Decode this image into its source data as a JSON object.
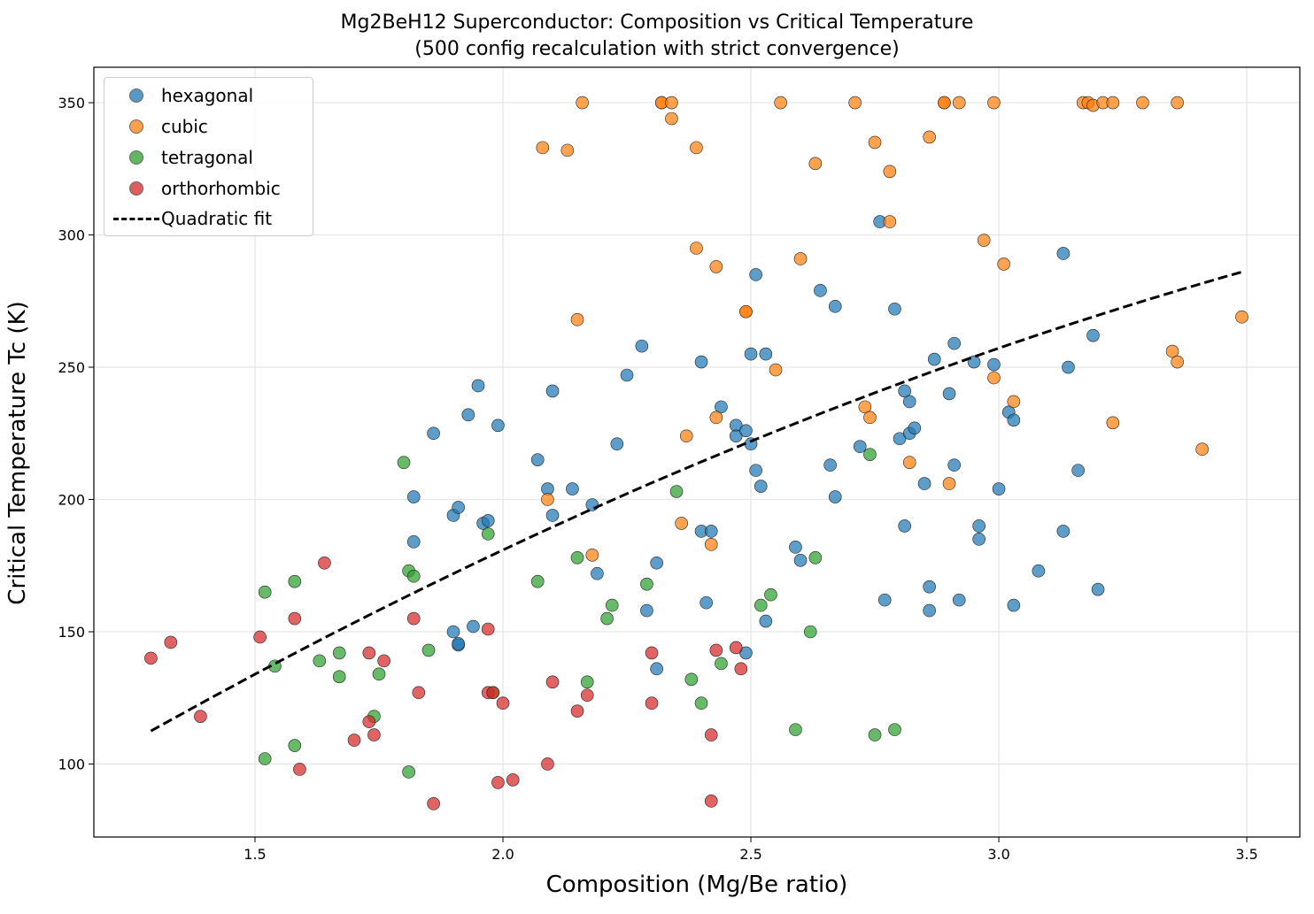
{
  "chart_data": {
    "type": "scatter",
    "title": "Mg2BeH12 Superconductor: Composition vs Critical Temperature",
    "subtitle": "(500 config recalculation with strict convergence)",
    "xlabel": "Composition (Mg/Be ratio)",
    "ylabel": "Critical Temperature Tc (K)",
    "xlim": [
      1.175,
      3.607
    ],
    "ylim": [
      72.4,
      363.4
    ],
    "xticks": [
      1.5,
      2.0,
      2.5,
      3.0,
      3.5
    ],
    "xtick_labels": [
      "1.5",
      "2.0",
      "2.5",
      "3.0",
      "3.5"
    ],
    "yticks": [
      100,
      150,
      200,
      250,
      300,
      350
    ],
    "ytick_labels": [
      "100",
      "150",
      "200",
      "250",
      "300",
      "350"
    ],
    "grid": true,
    "legend_position": "top-left",
    "series": [
      {
        "name": "hexagonal",
        "color": "#1f77b4",
        "points": [
          [
            1.86,
            225
          ],
          [
            1.95,
            243
          ],
          [
            1.93,
            232
          ],
          [
            1.99,
            228
          ],
          [
            1.82,
            201
          ],
          [
            1.82,
            184
          ],
          [
            1.9,
            194
          ],
          [
            1.91,
            197
          ],
          [
            1.96,
            191
          ],
          [
            1.97,
            192
          ],
          [
            1.9,
            150
          ],
          [
            1.91,
            145
          ],
          [
            1.91,
            145.5
          ],
          [
            1.94,
            152
          ],
          [
            2.07,
            215
          ],
          [
            2.09,
            204
          ],
          [
            2.1,
            194
          ],
          [
            2.1,
            241
          ],
          [
            2.14,
            204
          ],
          [
            2.18,
            198
          ],
          [
            2.19,
            172
          ],
          [
            2.23,
            221
          ],
          [
            2.25,
            247
          ],
          [
            2.28,
            258
          ],
          [
            2.29,
            158
          ],
          [
            2.31,
            176
          ],
          [
            2.31,
            136
          ],
          [
            2.4,
            252
          ],
          [
            2.4,
            188
          ],
          [
            2.41,
            161
          ],
          [
            2.42,
            188
          ],
          [
            2.44,
            235
          ],
          [
            2.47,
            228
          ],
          [
            2.47,
            224
          ],
          [
            2.49,
            142
          ],
          [
            2.49,
            226
          ],
          [
            2.5,
            255
          ],
          [
            2.5,
            221
          ],
          [
            2.51,
            285
          ],
          [
            2.51,
            211
          ],
          [
            2.52,
            205
          ],
          [
            2.53,
            154
          ],
          [
            2.53,
            255
          ],
          [
            2.59,
            182
          ],
          [
            2.6,
            177
          ],
          [
            2.64,
            279
          ],
          [
            2.66,
            213
          ],
          [
            2.67,
            201
          ],
          [
            2.67,
            273
          ],
          [
            2.72,
            220
          ],
          [
            2.76,
            305
          ],
          [
            2.77,
            162
          ],
          [
            2.79,
            272
          ],
          [
            2.8,
            223
          ],
          [
            2.81,
            241
          ],
          [
            2.81,
            190
          ],
          [
            2.82,
            237
          ],
          [
            2.82,
            225
          ],
          [
            2.83,
            227
          ],
          [
            2.85,
            206
          ],
          [
            2.86,
            158
          ],
          [
            2.86,
            167
          ],
          [
            2.87,
            253
          ],
          [
            2.9,
            240
          ],
          [
            2.91,
            213
          ],
          [
            2.91,
            259
          ],
          [
            2.92,
            162
          ],
          [
            2.95,
            252
          ],
          [
            2.96,
            190
          ],
          [
            2.96,
            185
          ],
          [
            2.99,
            251
          ],
          [
            3.0,
            204
          ],
          [
            3.02,
            233
          ],
          [
            3.03,
            230
          ],
          [
            3.03,
            160
          ],
          [
            3.08,
            173
          ],
          [
            3.13,
            293
          ],
          [
            3.13,
            188
          ],
          [
            3.14,
            250
          ],
          [
            3.16,
            211
          ],
          [
            3.19,
            262
          ],
          [
            3.2,
            166
          ]
        ]
      },
      {
        "name": "cubic",
        "color": "#ff7f0e",
        "points": [
          [
            2.08,
            333
          ],
          [
            2.13,
            332
          ],
          [
            2.16,
            350
          ],
          [
            2.15,
            268
          ],
          [
            2.09,
            200
          ],
          [
            2.18,
            179
          ],
          [
            2.32,
            350
          ],
          [
            2.32,
            350
          ],
          [
            2.34,
            350
          ],
          [
            2.34,
            344
          ],
          [
            2.39,
            333
          ],
          [
            2.39,
            295
          ],
          [
            2.37,
            224
          ],
          [
            2.36,
            191
          ],
          [
            2.42,
            183
          ],
          [
            2.43,
            288
          ],
          [
            2.43,
            231
          ],
          [
            2.49,
            271
          ],
          [
            2.49,
            271
          ],
          [
            2.55,
            249
          ],
          [
            2.56,
            350
          ],
          [
            2.6,
            291
          ],
          [
            2.63,
            327
          ],
          [
            2.71,
            350
          ],
          [
            2.73,
            235
          ],
          [
            2.74,
            231
          ],
          [
            2.75,
            335
          ],
          [
            2.78,
            324
          ],
          [
            2.78,
            305
          ],
          [
            2.82,
            214
          ],
          [
            2.86,
            337
          ],
          [
            2.89,
            350
          ],
          [
            2.89,
            350
          ],
          [
            2.9,
            206
          ],
          [
            2.92,
            350
          ],
          [
            2.97,
            298
          ],
          [
            2.99,
            350
          ],
          [
            2.99,
            246
          ],
          [
            3.01,
            289
          ],
          [
            3.03,
            237
          ],
          [
            3.17,
            350
          ],
          [
            3.18,
            350
          ],
          [
            3.19,
            349
          ],
          [
            3.21,
            350
          ],
          [
            3.23,
            350
          ],
          [
            3.23,
            229
          ],
          [
            3.29,
            350
          ],
          [
            3.35,
            256
          ],
          [
            3.36,
            350
          ],
          [
            3.36,
            252
          ],
          [
            3.41,
            219
          ],
          [
            3.49,
            269
          ]
        ]
      },
      {
        "name": "tetragonal",
        "color": "#2ca02c",
        "points": [
          [
            1.52,
            165
          ],
          [
            1.54,
            137
          ],
          [
            1.52,
            102
          ],
          [
            1.58,
            169
          ],
          [
            1.58,
            107
          ],
          [
            1.63,
            139
          ],
          [
            1.67,
            142
          ],
          [
            1.67,
            133
          ],
          [
            1.74,
            118
          ],
          [
            1.75,
            134
          ],
          [
            1.8,
            214
          ],
          [
            1.81,
            173
          ],
          [
            1.82,
            171
          ],
          [
            1.81,
            97
          ],
          [
            1.85,
            143
          ],
          [
            1.97,
            187
          ],
          [
            1.98,
            127
          ],
          [
            2.07,
            169
          ],
          [
            2.15,
            178
          ],
          [
            2.17,
            131
          ],
          [
            2.21,
            155
          ],
          [
            2.22,
            160
          ],
          [
            2.29,
            168
          ],
          [
            2.35,
            203
          ],
          [
            2.38,
            132
          ],
          [
            2.4,
            123
          ],
          [
            2.44,
            138
          ],
          [
            2.52,
            160
          ],
          [
            2.54,
            164
          ],
          [
            2.59,
            113
          ],
          [
            2.62,
            150
          ],
          [
            2.63,
            178
          ],
          [
            2.74,
            217
          ],
          [
            2.75,
            111
          ],
          [
            2.79,
            113
          ]
        ]
      },
      {
        "name": "orthorhombic",
        "color": "#d62728",
        "points": [
          [
            1.29,
            140
          ],
          [
            1.33,
            146
          ],
          [
            1.39,
            118
          ],
          [
            1.51,
            148
          ],
          [
            1.58,
            155
          ],
          [
            1.59,
            98
          ],
          [
            1.64,
            176
          ],
          [
            1.7,
            109
          ],
          [
            1.73,
            116
          ],
          [
            1.73,
            142
          ],
          [
            1.74,
            111
          ],
          [
            1.76,
            139
          ],
          [
            1.82,
            155
          ],
          [
            1.83,
            127
          ],
          [
            1.86,
            85
          ],
          [
            1.97,
            151
          ],
          [
            1.97,
            127
          ],
          [
            1.98,
            127
          ],
          [
            1.99,
            93
          ],
          [
            2.0,
            123
          ],
          [
            2.02,
            94
          ],
          [
            2.09,
            100
          ],
          [
            2.1,
            131
          ],
          [
            2.15,
            120
          ],
          [
            2.17,
            126
          ],
          [
            2.3,
            142
          ],
          [
            2.3,
            123
          ],
          [
            2.42,
            111
          ],
          [
            2.42,
            86
          ],
          [
            2.43,
            143
          ],
          [
            2.47,
            144
          ],
          [
            2.48,
            136
          ]
        ]
      }
    ],
    "fit": {
      "name": "Quadratic fit",
      "color": "#000000",
      "style": "dashed",
      "coefficients": {
        "a": -11.76,
        "b": 135.1,
        "c": -42.25
      },
      "x_range": [
        1.29,
        3.49
      ]
    }
  }
}
